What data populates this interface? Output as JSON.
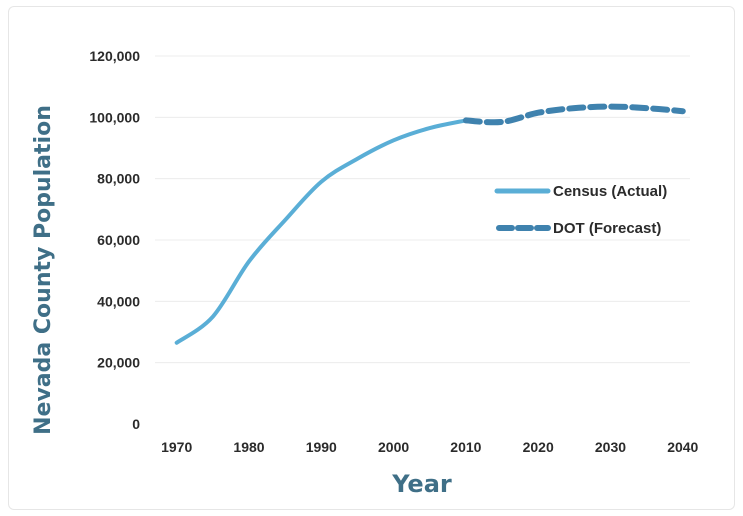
{
  "chart_data": {
    "type": "line",
    "title": "",
    "xlabel": "Year",
    "ylabel": "Nevada County Population",
    "xlim": [
      1967,
      2041
    ],
    "ylim": [
      0,
      120000
    ],
    "x_ticks": [
      1970,
      1980,
      1990,
      2000,
      2010,
      2020,
      2030,
      2040
    ],
    "x_tick_labels": [
      "1970",
      "1980",
      "1990",
      "2000",
      "2010",
      "2020",
      "2030",
      "2040"
    ],
    "y_ticks": [
      0,
      20000,
      40000,
      60000,
      80000,
      100000,
      120000
    ],
    "y_tick_labels": [
      "0",
      "20,000",
      "40,000",
      "60,000",
      "80,000",
      "100,000",
      "120,000"
    ],
    "grid": "horizontal",
    "legend": "right",
    "series": [
      {
        "name": "Census (Actual)",
        "style": "solid",
        "color": "#5aaed6",
        "x": [
          1970,
          1975,
          1980,
          1985,
          1990,
          1995,
          2000,
          2005,
          2010
        ],
        "y": [
          26500,
          35000,
          53000,
          66500,
          79000,
          86500,
          92500,
          96500,
          99000
        ]
      },
      {
        "name": "DOT (Forecast)",
        "style": "dashed",
        "color": "#3f82ae",
        "x": [
          2010,
          2015,
          2020,
          2025,
          2030,
          2035,
          2040
        ],
        "y": [
          99000,
          98500,
          101500,
          103000,
          103500,
          103000,
          102000
        ]
      }
    ]
  }
}
